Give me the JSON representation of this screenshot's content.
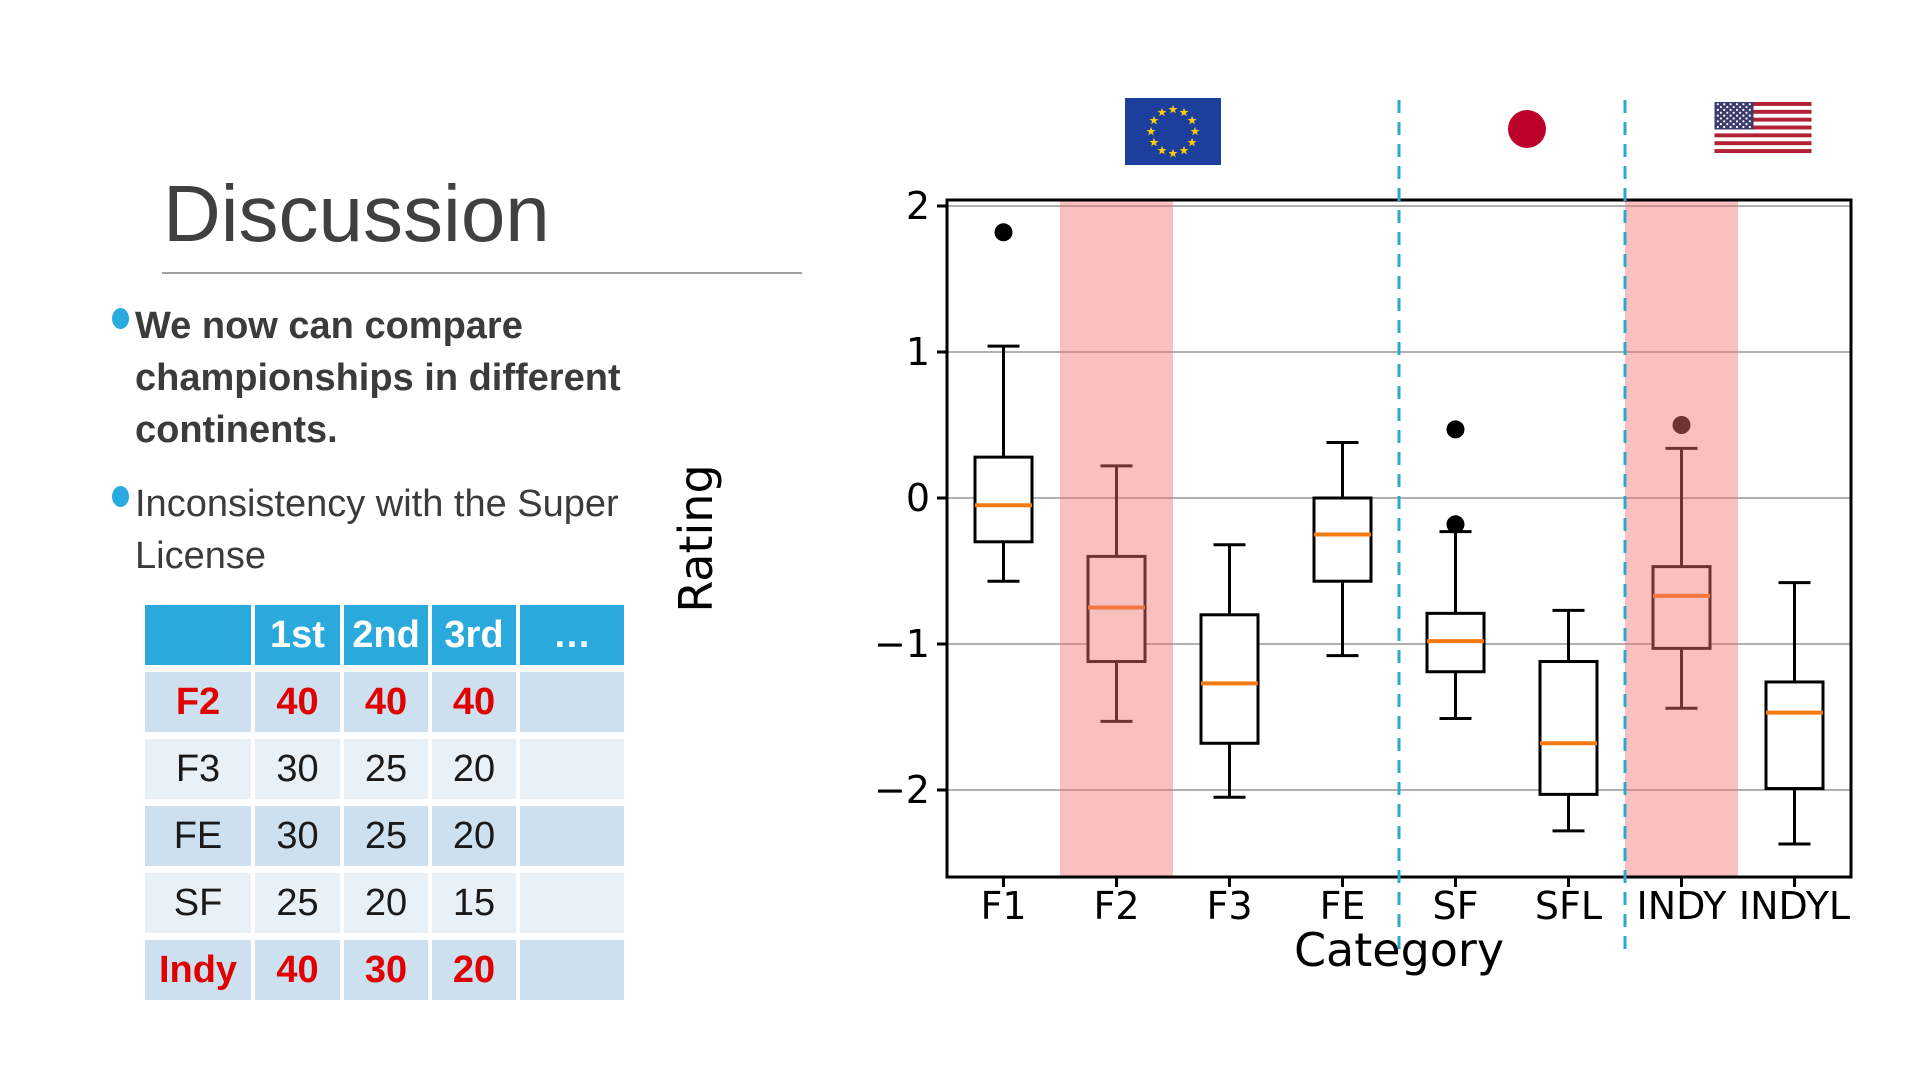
{
  "slide": {
    "title": "Discussion",
    "accent_color": "#29abe2",
    "text_color": "#3b3b3b",
    "bullets": [
      {
        "text": "We now can compare championships in different continents.",
        "bold": true
      },
      {
        "text": "Inconsistency with the Super License",
        "bold": false
      }
    ],
    "table": {
      "headers": [
        "",
        "1st",
        "2nd",
        "3rd",
        "…"
      ],
      "rows": [
        {
          "label": "F2",
          "values": [
            "40",
            "40",
            "40",
            ""
          ],
          "highlight": true
        },
        {
          "label": "F3",
          "values": [
            "30",
            "25",
            "20",
            ""
          ],
          "highlight": false
        },
        {
          "label": "FE",
          "values": [
            "30",
            "25",
            "20",
            ""
          ],
          "highlight": false
        },
        {
          "label": "SF",
          "values": [
            "25",
            "20",
            "15",
            ""
          ],
          "highlight": false
        },
        {
          "label": "Indy",
          "values": [
            "40",
            "30",
            "20",
            ""
          ],
          "highlight": true
        }
      ],
      "header_bg": "#29a9dc",
      "row_bg_odd": "#cde0f0",
      "row_bg_even": "#e9f1f8",
      "highlight_text_color": "#e00000"
    }
  },
  "chart_data": {
    "type": "boxplot",
    "xlabel": "Category",
    "ylabel": "Rating",
    "categories": [
      "F1",
      "F2",
      "F3",
      "FE",
      "SF",
      "SFL",
      "INDY",
      "INDYL"
    ],
    "yticks": [
      "2",
      "1",
      "0",
      "−1",
      "−2"
    ],
    "ytick_values": [
      2,
      1,
      0,
      -1,
      -2
    ],
    "ylim": [
      -2.6,
      2.04
    ],
    "grid": true,
    "series": [
      {
        "category": "F1",
        "whisker_low": -0.57,
        "q1": -0.3,
        "median": -0.05,
        "q3": 0.28,
        "whisker_high": 1.04,
        "outliers": [
          1.82
        ]
      },
      {
        "category": "F2",
        "whisker_low": -1.53,
        "q1": -1.12,
        "median": -0.75,
        "q3": -0.4,
        "whisker_high": 0.22,
        "outliers": []
      },
      {
        "category": "F3",
        "whisker_low": -2.05,
        "q1": -1.68,
        "median": -1.27,
        "q3": -0.8,
        "whisker_high": -0.32,
        "outliers": []
      },
      {
        "category": "FE",
        "whisker_low": -1.08,
        "q1": -0.57,
        "median": -0.25,
        "q3": 0.0,
        "whisker_high": 0.38,
        "outliers": []
      },
      {
        "category": "SF",
        "whisker_low": -1.51,
        "q1": -1.19,
        "median": -0.98,
        "q3": -0.79,
        "whisker_high": -0.23,
        "outliers": [
          0.47,
          -0.18
        ]
      },
      {
        "category": "SFL",
        "whisker_low": -2.28,
        "q1": -2.03,
        "median": -1.68,
        "q3": -1.12,
        "whisker_high": -0.77,
        "outliers": []
      },
      {
        "category": "INDY",
        "whisker_low": -1.44,
        "q1": -1.03,
        "median": -0.67,
        "q3": -0.47,
        "whisker_high": 0.34,
        "outliers": [
          0.5
        ]
      },
      {
        "category": "INDYL",
        "whisker_low": -2.37,
        "q1": -1.99,
        "median": -1.47,
        "q3": -1.26,
        "whisker_high": -0.58,
        "outliers": []
      }
    ],
    "highlight_bands": [
      "F2",
      "INDY"
    ],
    "separators_after": [
      "FE",
      "SFL"
    ],
    "regions": [
      {
        "flag": "eu-flag",
        "from": "F1",
        "to": "FE"
      },
      {
        "flag": "japan-flag",
        "from": "SF",
        "to": "SFL"
      },
      {
        "flag": "us-flag",
        "from": "INDY",
        "to": "INDYL"
      }
    ],
    "colors": {
      "box_edge": "#000000",
      "box_fill": "#ffffff",
      "median": "#f57a10",
      "outlier": "#000000",
      "grid": "#b0b0b0",
      "highlight_band": "rgba(242,115,115,0.45)",
      "separator": "#2ba8cb",
      "eu_blue": "#1c3f9e",
      "eu_star": "#ffcc00",
      "japan_red": "#bd0029",
      "us_red": "#b22234",
      "us_blue": "#3c3b6e",
      "us_white": "#ffffff"
    }
  }
}
